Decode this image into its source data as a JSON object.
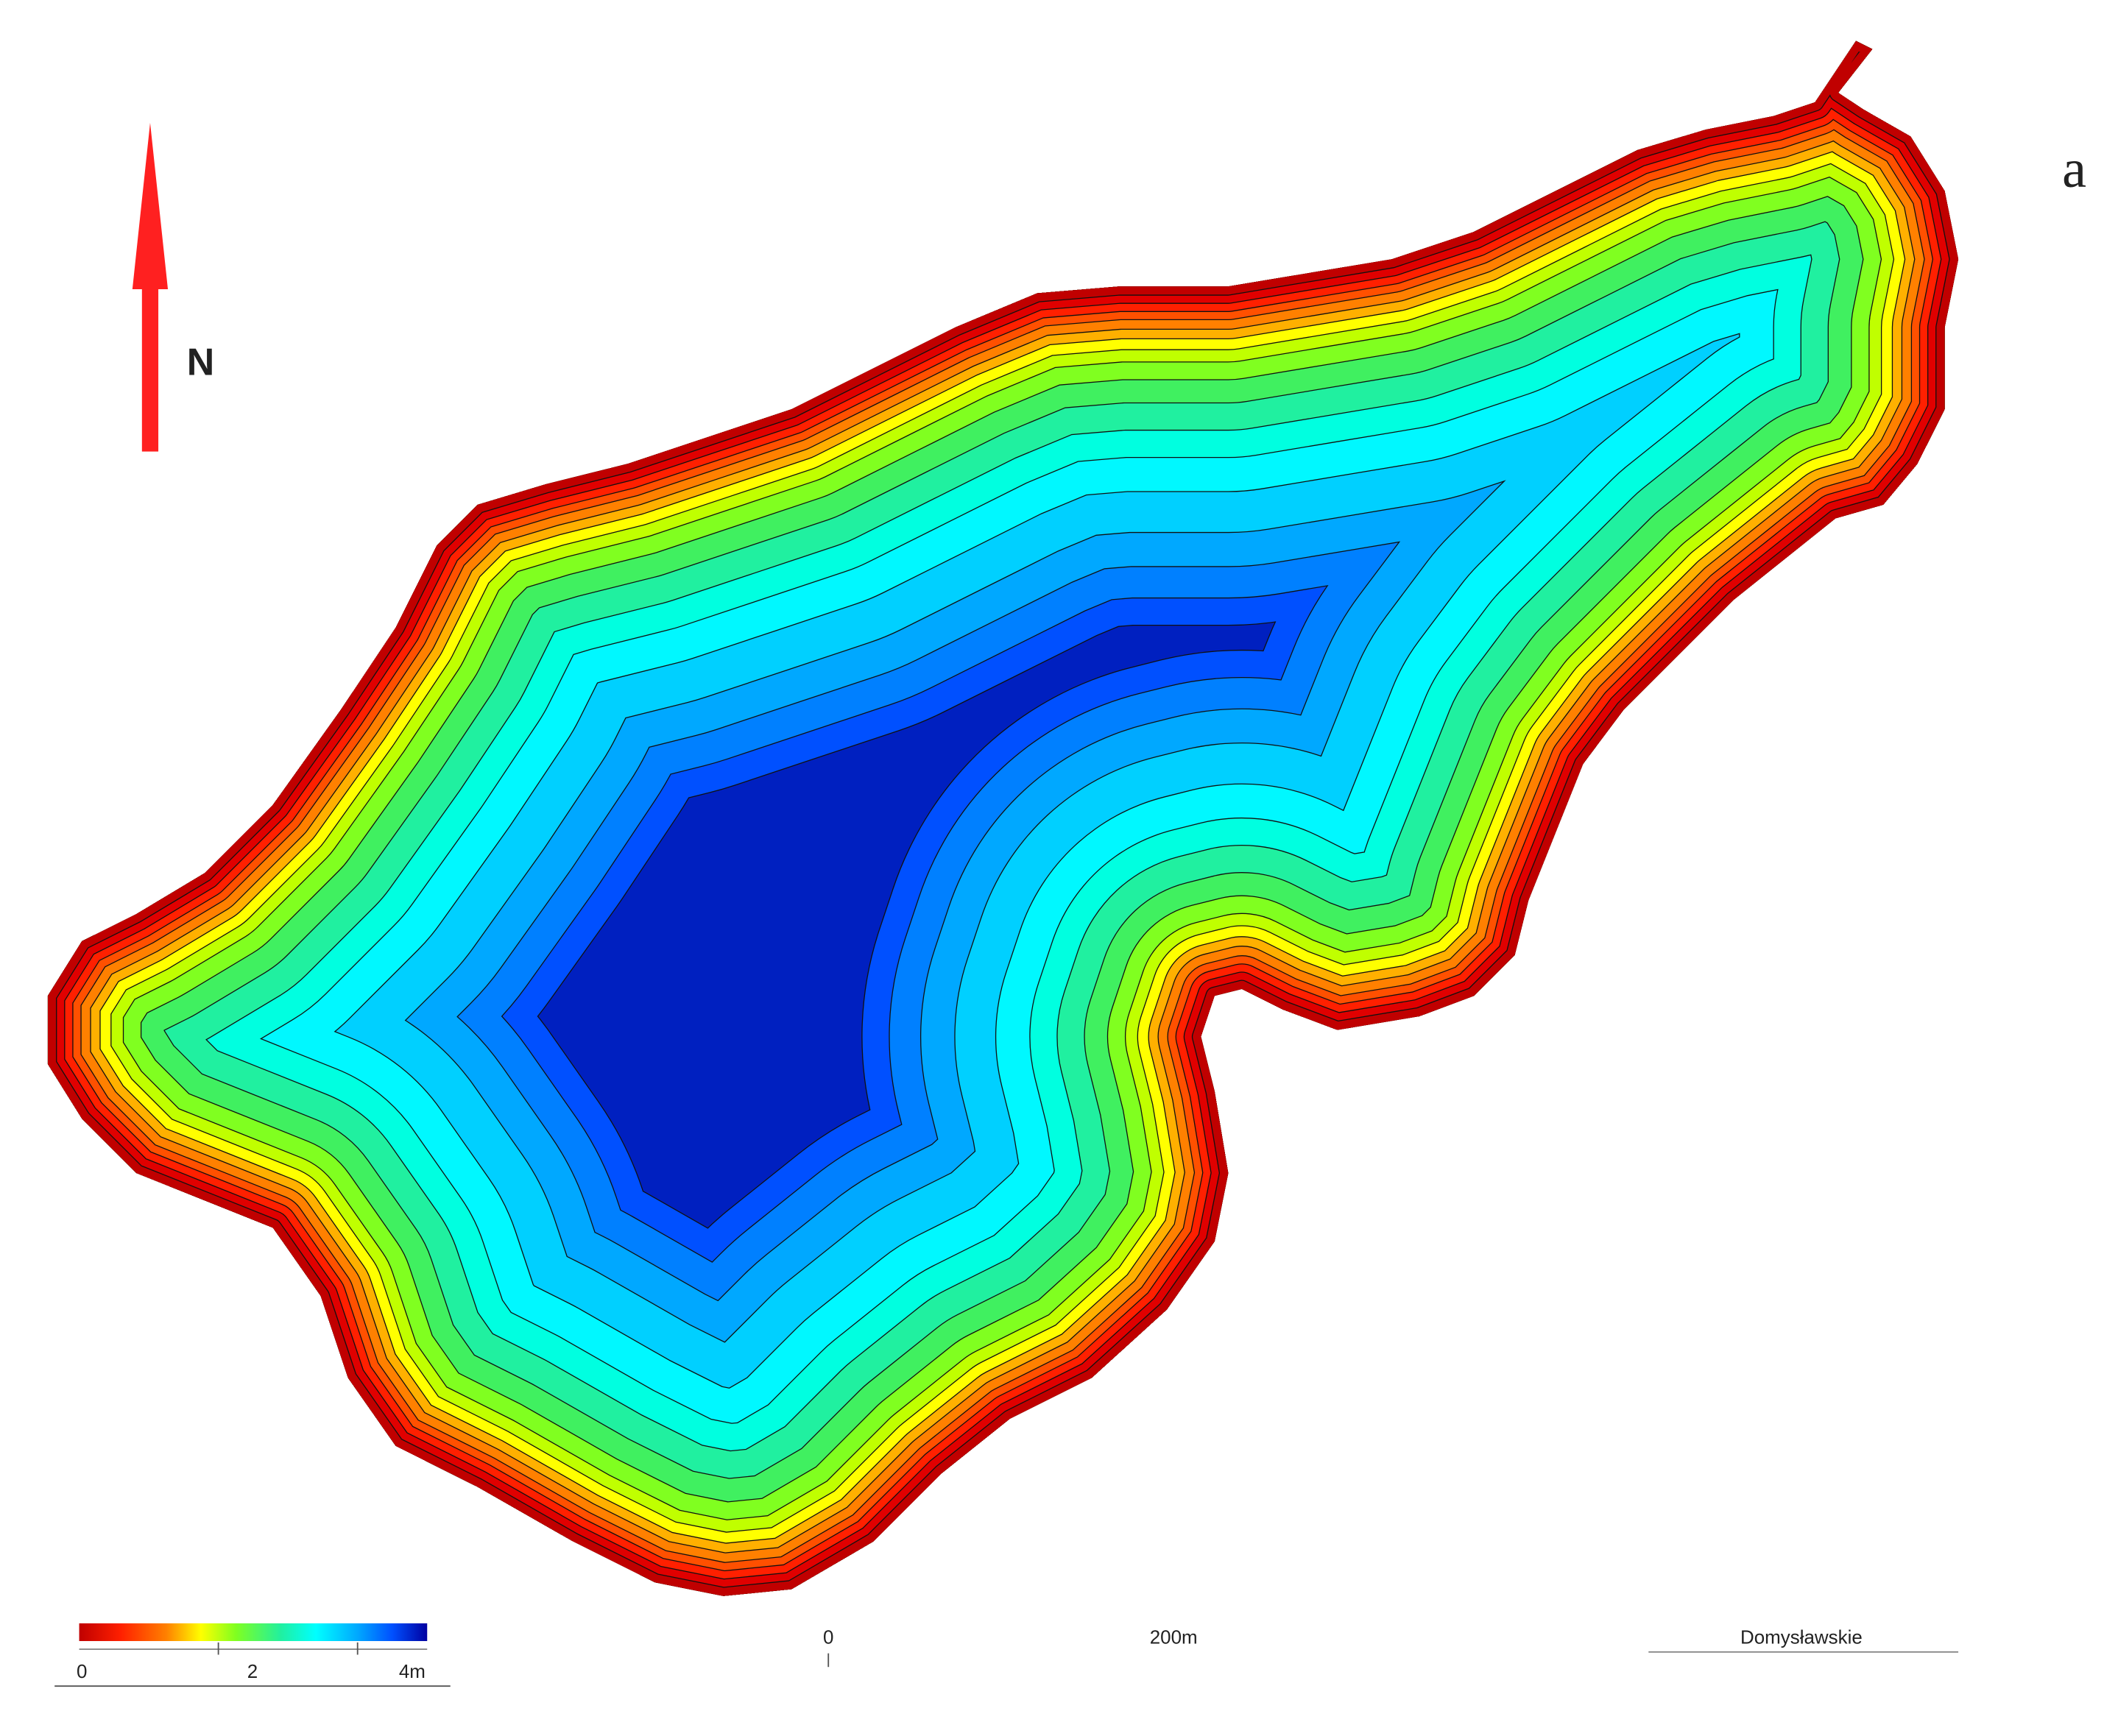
{
  "north_label": "N",
  "panel_label": "a",
  "legend": {
    "ticks": [
      "0",
      "2",
      "4m"
    ]
  },
  "scale_bar": {
    "start": "0",
    "end": "200m"
  },
  "lake_name": "Domysławskie"
}
